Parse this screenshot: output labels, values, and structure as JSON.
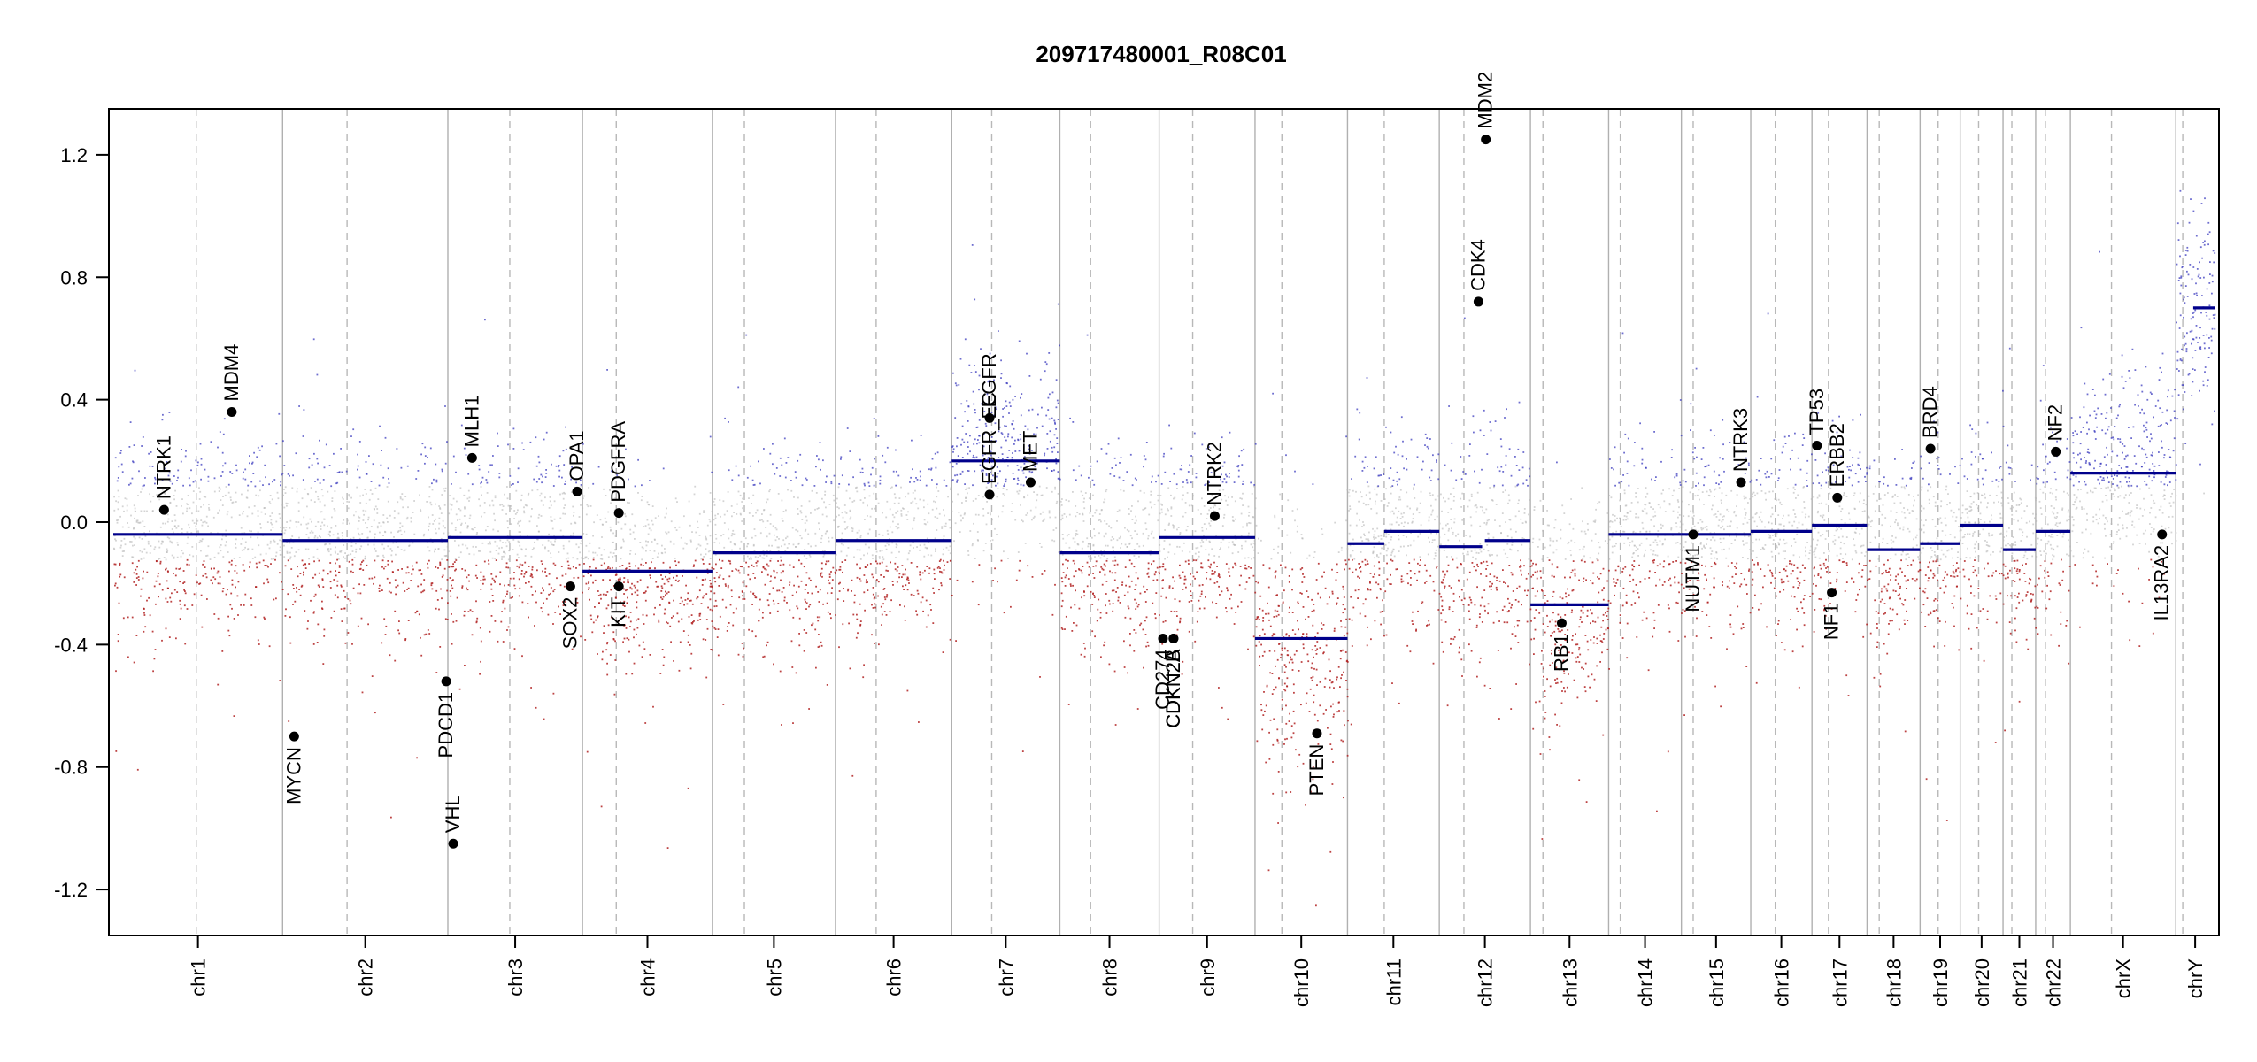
{
  "chart_data": {
    "type": "scatter",
    "title": "209717480001_R08C01",
    "xlabel": "",
    "ylabel": "",
    "ylim": [
      -1.35,
      1.35
    ],
    "y_ticks": [
      -1.2,
      -0.8,
      -0.4,
      0.0,
      0.4,
      0.8,
      1.2
    ],
    "y_tick_labels": [
      "-1.2",
      "-0.8",
      "-0.4",
      "0.0",
      "0.4",
      "0.8",
      "1.2"
    ],
    "chromosomes": [
      {
        "name": "chr1",
        "length": 249,
        "centromere": 0.49,
        "segments": [
          {
            "from": 0,
            "to": 1,
            "value": -0.04
          }
        ]
      },
      {
        "name": "chr2",
        "length": 243,
        "centromere": 0.39,
        "segments": [
          {
            "from": 0,
            "to": 1,
            "value": -0.06
          }
        ]
      },
      {
        "name": "chr3",
        "length": 198,
        "centromere": 0.46,
        "segments": [
          {
            "from": 0,
            "to": 1,
            "value": -0.05
          }
        ]
      },
      {
        "name": "chr4",
        "length": 191,
        "centromere": 0.26,
        "segments": [
          {
            "from": 0,
            "to": 1,
            "value": -0.16
          }
        ]
      },
      {
        "name": "chr5",
        "length": 181,
        "centromere": 0.26,
        "segments": [
          {
            "from": 0,
            "to": 1,
            "value": -0.1
          }
        ]
      },
      {
        "name": "chr6",
        "length": 171,
        "centromere": 0.35,
        "segments": [
          {
            "from": 0,
            "to": 1,
            "value": -0.06
          }
        ]
      },
      {
        "name": "chr7",
        "length": 159,
        "centromere": 0.37,
        "segments": [
          {
            "from": 0,
            "to": 1,
            "value": 0.2
          }
        ]
      },
      {
        "name": "chr8",
        "length": 146,
        "centromere": 0.31,
        "segments": [
          {
            "from": 0,
            "to": 1,
            "value": -0.1
          }
        ]
      },
      {
        "name": "chr9",
        "length": 141,
        "centromere": 0.35,
        "segments": [
          {
            "from": 0,
            "to": 1,
            "value": -0.05
          }
        ]
      },
      {
        "name": "chr10",
        "length": 136,
        "centromere": 0.29,
        "segments": [
          {
            "from": 0,
            "to": 1,
            "value": -0.38
          }
        ]
      },
      {
        "name": "chr11",
        "length": 135,
        "centromere": 0.4,
        "segments": [
          {
            "from": 0,
            "to": 0.4,
            "value": -0.07
          },
          {
            "from": 0.4,
            "to": 1,
            "value": -0.03
          }
        ]
      },
      {
        "name": "chr12",
        "length": 134,
        "centromere": 0.27,
        "segments": [
          {
            "from": 0,
            "to": 0.47,
            "value": -0.08
          },
          {
            "from": 0.5,
            "to": 1,
            "value": -0.06
          }
        ]
      },
      {
        "name": "chr13",
        "length": 115,
        "centromere": 0.16,
        "segments": [
          {
            "from": 0,
            "to": 1,
            "value": -0.27
          }
        ]
      },
      {
        "name": "chr14",
        "length": 107,
        "centromere": 0.16,
        "segments": [
          {
            "from": 0,
            "to": 1,
            "value": -0.04
          }
        ]
      },
      {
        "name": "chr15",
        "length": 102,
        "centromere": 0.17,
        "segments": [
          {
            "from": 0,
            "to": 1,
            "value": -0.04
          }
        ]
      },
      {
        "name": "chr16",
        "length": 90,
        "centromere": 0.4,
        "segments": [
          {
            "from": 0,
            "to": 1,
            "value": -0.03
          }
        ]
      },
      {
        "name": "chr17",
        "length": 81,
        "centromere": 0.3,
        "segments": [
          {
            "from": 0,
            "to": 1,
            "value": -0.01
          }
        ]
      },
      {
        "name": "chr18",
        "length": 78,
        "centromere": 0.23,
        "segments": [
          {
            "from": 0,
            "to": 1,
            "value": -0.09
          }
        ]
      },
      {
        "name": "chr19",
        "length": 59,
        "centromere": 0.45,
        "segments": [
          {
            "from": 0,
            "to": 1,
            "value": -0.07
          }
        ]
      },
      {
        "name": "chr20",
        "length": 63,
        "centromere": 0.43,
        "segments": [
          {
            "from": 0,
            "to": 1,
            "value": -0.01
          }
        ]
      },
      {
        "name": "chr21",
        "length": 48,
        "centromere": 0.27,
        "segments": [
          {
            "from": 0,
            "to": 1,
            "value": -0.09
          }
        ]
      },
      {
        "name": "chr22",
        "length": 51,
        "centromere": 0.28,
        "segments": [
          {
            "from": 0,
            "to": 1,
            "value": -0.03
          }
        ]
      },
      {
        "name": "chrX",
        "length": 155,
        "centromere": 0.39,
        "segments": [
          {
            "from": 0,
            "to": 1,
            "value": 0.16
          }
        ]
      },
      {
        "name": "chrY",
        "length": 57,
        "centromere": 0.18,
        "segments": [
          {
            "from": 0.45,
            "to": 1,
            "value": 0.7
          }
        ]
      }
    ],
    "genes": [
      {
        "name": "NTRK1",
        "chrom": "chr1",
        "pos": 0.3,
        "value": 0.04,
        "label": "above"
      },
      {
        "name": "MDM4",
        "chrom": "chr1",
        "pos": 0.7,
        "value": 0.36,
        "label": "above"
      },
      {
        "name": "MYCN",
        "chrom": "chr2",
        "pos": 0.07,
        "value": -0.7,
        "label": "below"
      },
      {
        "name": "PDCD1",
        "chrom": "chr2",
        "pos": 0.99,
        "value": -0.52,
        "label": "below"
      },
      {
        "name": "VHL",
        "chrom": "chr3",
        "pos": 0.04,
        "value": -1.05,
        "label": "above"
      },
      {
        "name": "MLH1",
        "chrom": "chr3",
        "pos": 0.18,
        "value": 0.21,
        "label": "above"
      },
      {
        "name": "SOX2",
        "chrom": "chr3",
        "pos": 0.91,
        "value": -0.21,
        "label": "below"
      },
      {
        "name": "OPA1",
        "chrom": "chr3",
        "pos": 0.96,
        "value": 0.1,
        "label": "above"
      },
      {
        "name": "PDGFRA",
        "chrom": "chr4",
        "pos": 0.28,
        "value": 0.03,
        "label": "above"
      },
      {
        "name": "KIT",
        "chrom": "chr4",
        "pos": 0.28,
        "value": -0.21,
        "label": "below"
      },
      {
        "name": "EGFR_EC",
        "chrom": "chr7",
        "pos": 0.35,
        "value": 0.09,
        "label": "above"
      },
      {
        "name": "EGFR",
        "chrom": "chr7",
        "pos": 0.35,
        "value": 0.34,
        "label": "above"
      },
      {
        "name": "MET",
        "chrom": "chr7",
        "pos": 0.73,
        "value": 0.13,
        "label": "above"
      },
      {
        "name": "CD274",
        "chrom": "chr9",
        "pos": 0.04,
        "value": -0.38,
        "label": "below"
      },
      {
        "name": "CDKN2A",
        "chrom": "chr9",
        "pos": 0.15,
        "value": -0.38,
        "label": "below"
      },
      {
        "name": "CDKN2B",
        "chrom": "chr9",
        "pos": 0.15,
        "value": -0.38,
        "label": "below"
      },
      {
        "name": "NTRK2",
        "chrom": "chr9",
        "pos": 0.58,
        "value": 0.02,
        "label": "above"
      },
      {
        "name": "PTEN",
        "chrom": "chr10",
        "pos": 0.67,
        "value": -0.69,
        "label": "below"
      },
      {
        "name": "CDK4",
        "chrom": "chr12",
        "pos": 0.43,
        "value": 0.72,
        "label": "above"
      },
      {
        "name": "MDM2",
        "chrom": "chr12",
        "pos": 0.51,
        "value": 1.25,
        "label": "above"
      },
      {
        "name": "RB1",
        "chrom": "chr13",
        "pos": 0.4,
        "value": -0.33,
        "label": "below"
      },
      {
        "name": "NUTM1",
        "chrom": "chr15",
        "pos": 0.17,
        "value": -0.04,
        "label": "below"
      },
      {
        "name": "NTRK3",
        "chrom": "chr15",
        "pos": 0.86,
        "value": 0.13,
        "label": "above"
      },
      {
        "name": "TP53",
        "chrom": "chr17",
        "pos": 0.09,
        "value": 0.25,
        "label": "above"
      },
      {
        "name": "ERBB2",
        "chrom": "chr17",
        "pos": 0.46,
        "value": 0.08,
        "label": "above"
      },
      {
        "name": "NF1",
        "chrom": "chr17",
        "pos": 0.36,
        "value": -0.23,
        "label": "below"
      },
      {
        "name": "BRD4",
        "chrom": "chr19",
        "pos": 0.26,
        "value": 0.24,
        "label": "above"
      },
      {
        "name": "NF2",
        "chrom": "chr22",
        "pos": 0.58,
        "value": 0.23,
        "label": "above"
      },
      {
        "name": "IL13RA2",
        "chrom": "chrX",
        "pos": 0.87,
        "value": -0.04,
        "label": "below"
      }
    ],
    "colors": {
      "segment": "#00008b",
      "gain": "#3d3dbf",
      "loss": "#b22222",
      "neutral": "#b8b8b8",
      "divider": "#b0b0b0",
      "centromere": "#b8b8b8",
      "marker": "#000000"
    }
  }
}
